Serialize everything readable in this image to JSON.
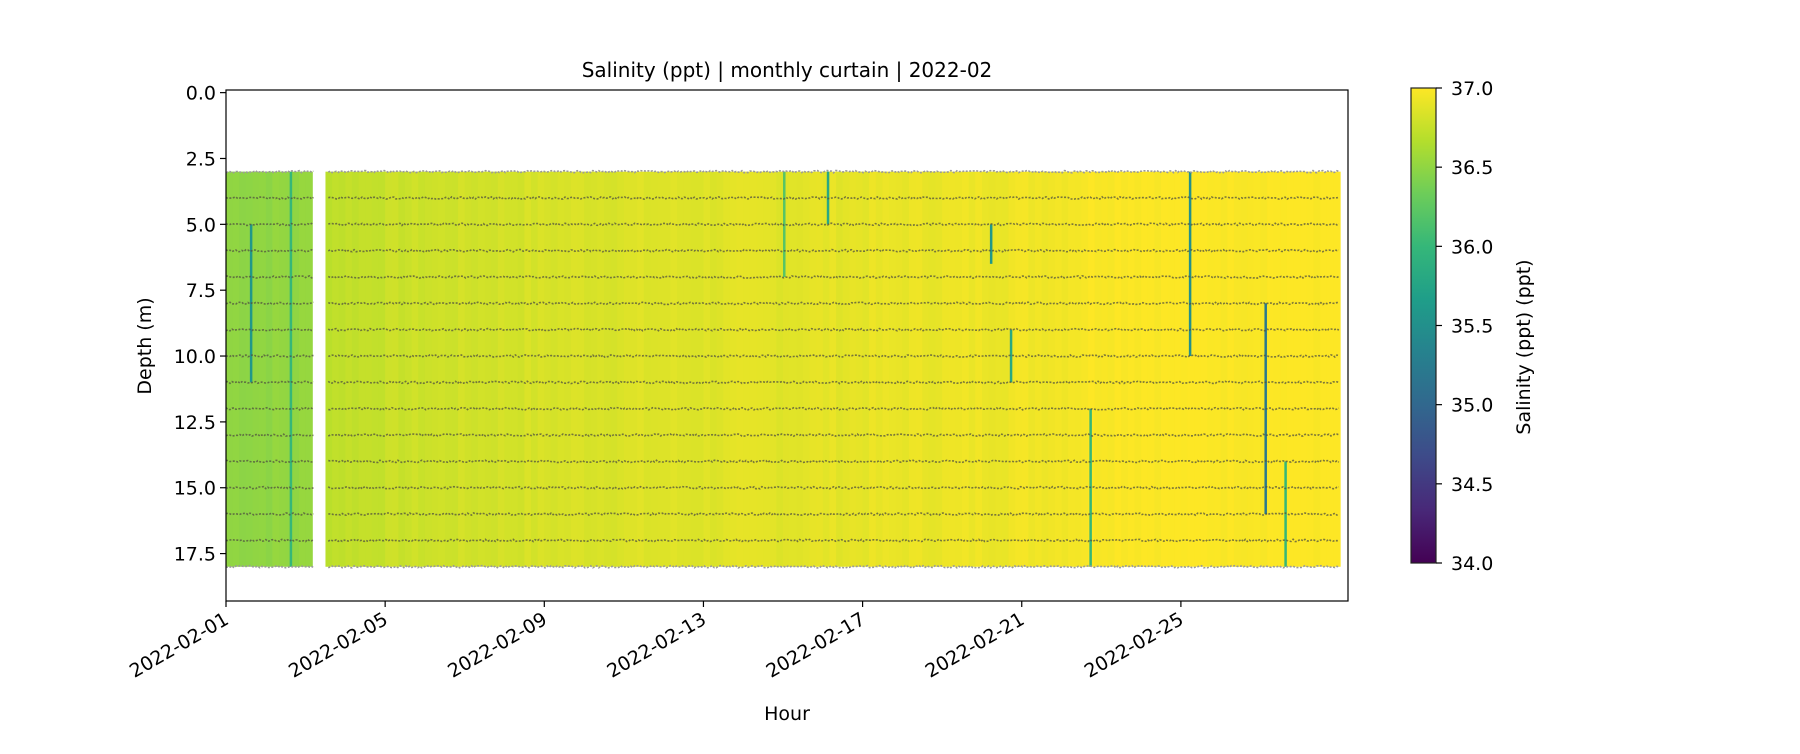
{
  "chart_data": {
    "type": "heatmap",
    "title": "Salinity (ppt) | monthly curtain | 2022-02",
    "xlabel": "Hour",
    "ylabel": "Depth (m)",
    "colorbar_label": "Salinity (ppt) (ppt)",
    "colormap": "viridis",
    "clim": [
      34.0,
      37.0
    ],
    "xlim_days_since_2022-02-01": [
      0,
      28.2
    ],
    "ylim": [
      19.3,
      -0.1
    ],
    "x_ticks": [
      {
        "day": 0,
        "label": "2022-02-01"
      },
      {
        "day": 4,
        "label": "2022-02-05"
      },
      {
        "day": 8,
        "label": "2022-02-09"
      },
      {
        "day": 12,
        "label": "2022-02-13"
      },
      {
        "day": 16,
        "label": "2022-02-17"
      },
      {
        "day": 20,
        "label": "2022-02-21"
      },
      {
        "day": 24,
        "label": "2022-02-25"
      }
    ],
    "y_ticks": [
      {
        "v": 0.0,
        "label": "0.0"
      },
      {
        "v": 2.5,
        "label": "2.5"
      },
      {
        "v": 5.0,
        "label": "5.0"
      },
      {
        "v": 7.5,
        "label": "7.5"
      },
      {
        "v": 10.0,
        "label": "10.0"
      },
      {
        "v": 12.5,
        "label": "12.5"
      },
      {
        "v": 15.0,
        "label": "15.0"
      },
      {
        "v": 17.5,
        "label": "17.5"
      }
    ],
    "colorbar_ticks": [
      {
        "v": 34.0,
        "label": "34.0"
      },
      {
        "v": 34.5,
        "label": "34.5"
      },
      {
        "v": 35.0,
        "label": "35.0"
      },
      {
        "v": 35.5,
        "label": "35.5"
      },
      {
        "v": 36.0,
        "label": "36.0"
      },
      {
        "v": 36.5,
        "label": "36.5"
      },
      {
        "v": 37.0,
        "label": "37.0"
      }
    ],
    "depth_levels_m": [
      3,
      4,
      5,
      6,
      7,
      8,
      9,
      10,
      11,
      12,
      13,
      14,
      15,
      16,
      17,
      18
    ],
    "data_gaps_days": [
      [
        2.22,
        2.57
      ]
    ],
    "salinity_trend": {
      "days": [
        0,
        1,
        2.2,
        2.57,
        5,
        9,
        13,
        16,
        19,
        21,
        22,
        25,
        28.2
      ],
      "salinity": [
        36.5,
        36.5,
        36.52,
        36.72,
        36.78,
        36.84,
        36.87,
        36.9,
        36.93,
        36.96,
        37.0,
        37.0,
        37.0
      ]
    },
    "anomalies": [
      {
        "day": 0.6,
        "depth": [
          5,
          11
        ],
        "salinity": 35.6
      },
      {
        "day": 1.6,
        "depth": [
          3,
          18
        ],
        "salinity": 36.0
      },
      {
        "day": 14.0,
        "depth": [
          3,
          7
        ],
        "salinity": 36.2
      },
      {
        "day": 15.1,
        "depth": [
          3,
          5
        ],
        "salinity": 35.8
      },
      {
        "day": 19.2,
        "depth": [
          5,
          6.5
        ],
        "salinity": 35.6
      },
      {
        "day": 19.7,
        "depth": [
          9,
          11
        ],
        "salinity": 35.8
      },
      {
        "day": 21.7,
        "depth": [
          12,
          18
        ],
        "salinity": 36.0
      },
      {
        "day": 24.2,
        "depth": [
          3,
          10
        ],
        "salinity": 35.5
      },
      {
        "day": 26.1,
        "depth": [
          8,
          16
        ],
        "salinity": 35.2
      },
      {
        "day": 26.6,
        "depth": [
          14,
          18
        ],
        "salinity": 36.0
      }
    ]
  }
}
